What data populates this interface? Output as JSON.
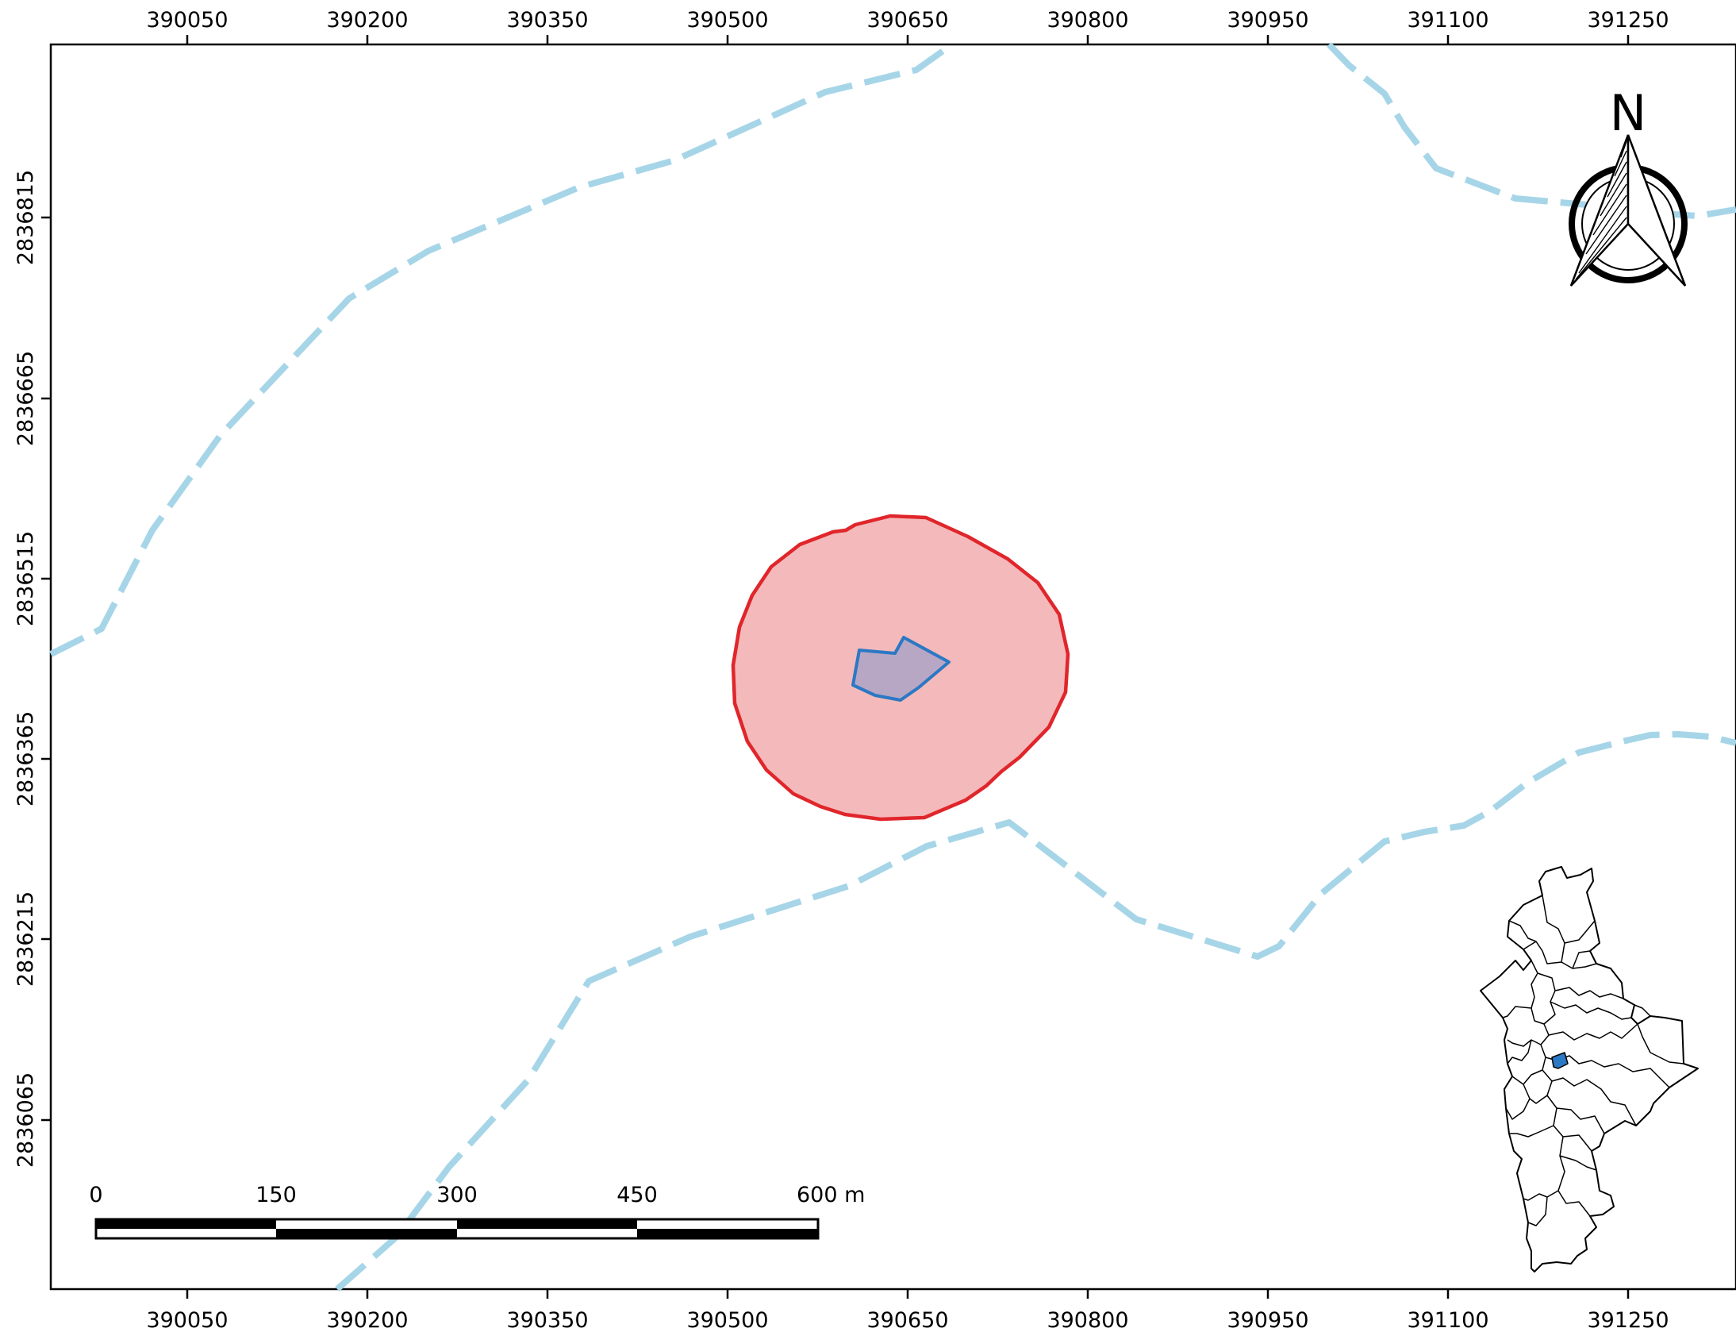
{
  "map": {
    "x_ticks": [
      "390050",
      "390200",
      "390350",
      "390500",
      "390650",
      "390800",
      "390950",
      "391100",
      "391250"
    ],
    "y_ticks": [
      "2836815",
      "2836665",
      "2836515",
      "2836365",
      "2836215",
      "2836065"
    ],
    "north_arrow": {
      "label": "N",
      "icon": "north-arrow-icon"
    },
    "scale_bar": {
      "labels": [
        "0",
        "150",
        "300",
        "450",
        "600 m"
      ]
    },
    "layers": {
      "streams": {
        "color": "#a6d5e8",
        "style": "dashed"
      },
      "buffer_zone": {
        "fill": "#f4b9bb",
        "stroke": "#e0262b"
      },
      "site_polygon": {
        "fill": "#b7a7c4",
        "stroke": "#2b78c4"
      },
      "locator_map": {
        "stroke": "#000000",
        "highlight": "#2b78c4"
      }
    }
  }
}
